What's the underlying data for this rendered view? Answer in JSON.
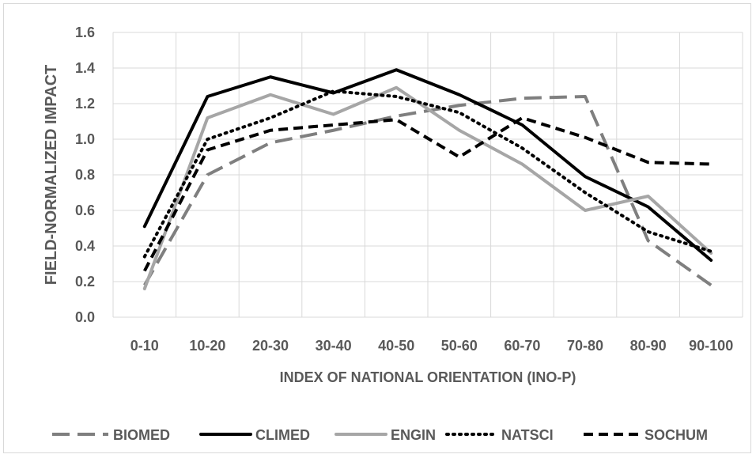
{
  "chart_data": {
    "type": "line",
    "title": "",
    "xlabel": "INDEX OF NATIONAL ORIENTATION (INO-P)",
    "ylabel": "FIELD-NORMALIZED IMPACT",
    "categories": [
      "0-10",
      "10-20",
      "20-30",
      "30-40",
      "40-50",
      "50-60",
      "60-70",
      "70-80",
      "80-90",
      "90-100"
    ],
    "ylim": [
      0,
      1.6
    ],
    "yticks": [
      "0.0",
      "0.2",
      "0.4",
      "0.6",
      "0.8",
      "1.0",
      "1.2",
      "1.4",
      "1.6"
    ],
    "grid": "horizontal",
    "legend_position": "bottom",
    "series": [
      {
        "name": "BIOMED",
        "color": "#7f7f7f",
        "dash": "long-dash",
        "values": [
          0.18,
          0.8,
          0.98,
          1.05,
          1.13,
          1.19,
          1.23,
          1.24,
          0.43,
          0.18
        ]
      },
      {
        "name": "CLIMED",
        "color": "#000000",
        "dash": "solid",
        "values": [
          0.51,
          1.24,
          1.35,
          1.26,
          1.39,
          1.25,
          1.08,
          0.79,
          0.62,
          0.32
        ]
      },
      {
        "name": "ENGIN",
        "color": "#a6a6a6",
        "dash": "solid",
        "values": [
          0.16,
          1.12,
          1.25,
          1.14,
          1.29,
          1.05,
          0.86,
          0.6,
          0.68,
          0.36
        ]
      },
      {
        "name": "NATSCI",
        "color": "#000000",
        "dash": "dotted",
        "values": [
          0.34,
          1.0,
          1.12,
          1.27,
          1.24,
          1.15,
          0.95,
          0.7,
          0.48,
          0.37
        ]
      },
      {
        "name": "SOCHUM",
        "color": "#000000",
        "dash": "dashed",
        "values": [
          0.26,
          0.94,
          1.05,
          1.08,
          1.11,
          0.9,
          1.12,
          1.01,
          0.87,
          0.86
        ]
      }
    ]
  }
}
